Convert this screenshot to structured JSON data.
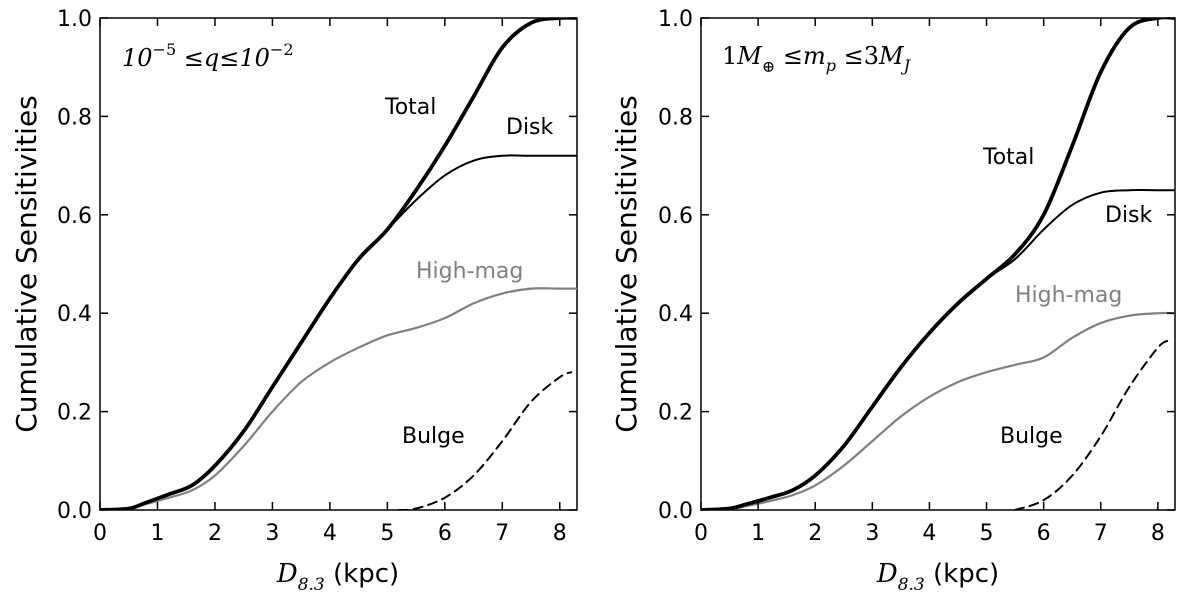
{
  "chart_data": [
    {
      "type": "line",
      "title": "",
      "annotation": "10^-5 ≤ q ≤ 10^-2",
      "xlabel": "D_8.3 (kpc)",
      "ylabel": "Cumulative Sensitivities",
      "xlim": [
        0,
        8.3
      ],
      "ylim": [
        0,
        1.0
      ],
      "x_ticks": [
        "0",
        "1",
        "2",
        "3",
        "4",
        "5",
        "6",
        "7",
        "8"
      ],
      "y_ticks": [
        "0.0",
        "0.2",
        "0.4",
        "0.6",
        "0.8",
        "1.0"
      ],
      "series": [
        {
          "name": "Total",
          "color": "#000000",
          "style": "solid-thick",
          "x": [
            0,
            0.5,
            0.8,
            1.2,
            1.6,
            2.0,
            2.5,
            3.0,
            3.5,
            4.0,
            4.5,
            5.0,
            5.5,
            6.0,
            6.5,
            7.0,
            7.5,
            8.0,
            8.3
          ],
          "y": [
            0,
            0.003,
            0.015,
            0.032,
            0.05,
            0.09,
            0.16,
            0.25,
            0.34,
            0.43,
            0.51,
            0.57,
            0.65,
            0.74,
            0.84,
            0.94,
            0.99,
            1.0,
            1.0
          ]
        },
        {
          "name": "Disk",
          "color": "#000000",
          "style": "solid",
          "x": [
            0,
            0.5,
            0.8,
            1.2,
            1.6,
            2.0,
            2.5,
            3.0,
            3.5,
            4.0,
            4.5,
            5.0,
            5.5,
            6.0,
            6.5,
            7.0,
            7.5,
            8.0,
            8.3
          ],
          "y": [
            0,
            0.003,
            0.015,
            0.032,
            0.05,
            0.09,
            0.16,
            0.25,
            0.34,
            0.43,
            0.51,
            0.57,
            0.63,
            0.68,
            0.71,
            0.72,
            0.72,
            0.72,
            0.72
          ]
        },
        {
          "name": "High-mag",
          "color": "#808080",
          "style": "solid",
          "x": [
            0,
            0.5,
            0.8,
            1.2,
            1.6,
            2.0,
            2.5,
            3.0,
            3.5,
            4.0,
            4.5,
            5.0,
            5.5,
            6.0,
            6.5,
            7.0,
            7.5,
            8.0,
            8.3
          ],
          "y": [
            0,
            0.002,
            0.012,
            0.025,
            0.04,
            0.07,
            0.13,
            0.2,
            0.26,
            0.3,
            0.33,
            0.355,
            0.37,
            0.39,
            0.42,
            0.44,
            0.45,
            0.45,
            0.45
          ]
        },
        {
          "name": "Bulge",
          "color": "#000000",
          "style": "dashed",
          "x": [
            5.2,
            5.5,
            6.0,
            6.5,
            7.0,
            7.5,
            8.0,
            8.2
          ],
          "y": [
            0,
            0.003,
            0.025,
            0.07,
            0.14,
            0.22,
            0.27,
            0.28
          ]
        }
      ]
    },
    {
      "type": "line",
      "title": "",
      "annotation": "1M⊕ ≤ m_p ≤ 3M_J",
      "xlabel": "D_8.3 (kpc)",
      "ylabel": "Cumulative Sensitivities",
      "xlim": [
        0,
        8.3
      ],
      "ylim": [
        0,
        1.0
      ],
      "x_ticks": [
        "0",
        "1",
        "2",
        "3",
        "4",
        "5",
        "6",
        "7",
        "8"
      ],
      "y_ticks": [
        "0.0",
        "0.2",
        "0.4",
        "0.6",
        "0.8",
        "1.0"
      ],
      "series": [
        {
          "name": "Total",
          "color": "#000000",
          "style": "solid-thick",
          "x": [
            0,
            0.5,
            0.8,
            1.2,
            1.6,
            2.0,
            2.5,
            3.0,
            3.5,
            4.0,
            4.5,
            5.0,
            5.5,
            6.0,
            6.5,
            7.0,
            7.5,
            8.0,
            8.3
          ],
          "y": [
            0,
            0.003,
            0.012,
            0.025,
            0.04,
            0.07,
            0.13,
            0.21,
            0.29,
            0.36,
            0.42,
            0.47,
            0.52,
            0.6,
            0.74,
            0.89,
            0.98,
            1.0,
            1.0
          ]
        },
        {
          "name": "Disk",
          "color": "#000000",
          "style": "solid",
          "x": [
            0,
            0.5,
            0.8,
            1.2,
            1.6,
            2.0,
            2.5,
            3.0,
            3.5,
            4.0,
            4.5,
            5.0,
            5.5,
            6.0,
            6.5,
            7.0,
            7.5,
            8.0,
            8.3
          ],
          "y": [
            0,
            0.003,
            0.012,
            0.025,
            0.04,
            0.07,
            0.13,
            0.21,
            0.29,
            0.36,
            0.42,
            0.47,
            0.51,
            0.57,
            0.62,
            0.645,
            0.65,
            0.65,
            0.65
          ]
        },
        {
          "name": "High-mag",
          "color": "#808080",
          "style": "solid",
          "x": [
            0,
            0.5,
            0.8,
            1.2,
            1.6,
            2.0,
            2.5,
            3.0,
            3.5,
            4.0,
            4.5,
            5.0,
            5.5,
            6.0,
            6.5,
            7.0,
            7.5,
            8.0,
            8.3
          ],
          "y": [
            0,
            0.002,
            0.008,
            0.018,
            0.03,
            0.05,
            0.09,
            0.14,
            0.19,
            0.23,
            0.26,
            0.28,
            0.295,
            0.31,
            0.35,
            0.38,
            0.395,
            0.4,
            0.4
          ]
        },
        {
          "name": "Bulge",
          "color": "#000000",
          "style": "dashed",
          "x": [
            5.5,
            6.0,
            6.5,
            7.0,
            7.5,
            8.0,
            8.2
          ],
          "y": [
            0,
            0.02,
            0.07,
            0.15,
            0.25,
            0.33,
            0.345
          ]
        }
      ]
    }
  ],
  "panels": [
    {
      "ann_total": "Total",
      "ann_disk": "Disk",
      "ann_highmag": "High-mag",
      "ann_bulge": "Bulge"
    },
    {
      "ann_total": "Total",
      "ann_disk": "Disk",
      "ann_highmag": "High-mag",
      "ann_bulge": "Bulge"
    }
  ]
}
